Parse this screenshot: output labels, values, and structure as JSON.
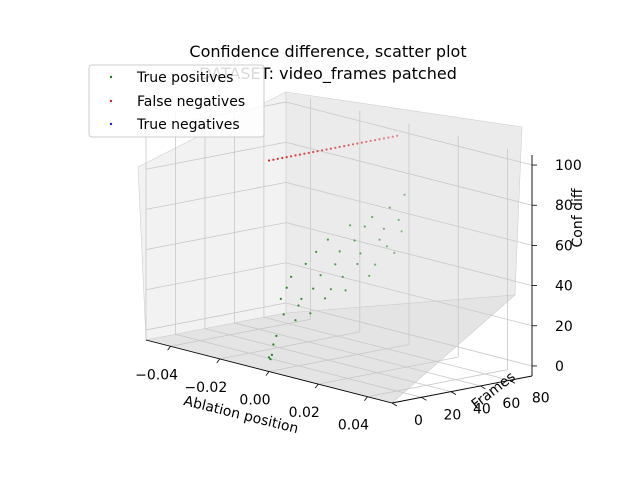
{
  "chart_data": {
    "type": "scatter",
    "projection": "3d",
    "title": "Confidence difference, scatter plot",
    "subtitle": "DATASET: video_frames patched",
    "xlabel": "Ablation position",
    "ylabel": "Frames",
    "zlabel": "Conf diff",
    "xlim": [
      -0.05,
      0.05
    ],
    "ylim": [
      0,
      95
    ],
    "zlim": [
      -5,
      105
    ],
    "xticks": [
      "−0.04",
      "−0.02",
      "0.00",
      "0.02",
      "0.04"
    ],
    "xtick_values": [
      -0.04,
      -0.02,
      0.0,
      0.02,
      0.04
    ],
    "yticks": [
      "0",
      "20",
      "40",
      "60",
      "80"
    ],
    "ytick_values": [
      0,
      20,
      40,
      60,
      80
    ],
    "zticks": [
      "0",
      "20",
      "40",
      "60",
      "80",
      "100"
    ],
    "ztick_values": [
      0,
      20,
      40,
      60,
      80,
      100
    ],
    "grid": true,
    "legend_position": "upper-left",
    "series": [
      {
        "name": "True positives",
        "color": "#1a7a1a",
        "x": [
          0,
          0,
          0,
          0,
          0,
          0,
          0,
          0,
          0,
          0,
          0,
          0,
          0,
          0,
          0,
          0,
          0,
          0,
          0,
          0,
          0,
          0,
          0,
          0,
          0,
          0,
          0,
          0,
          0,
          0,
          0,
          0,
          0,
          0,
          0,
          0,
          0,
          0,
          0,
          0
        ],
        "y": [
          0,
          1,
          2,
          3,
          5,
          8,
          10,
          12,
          15,
          18,
          20,
          22,
          25,
          28,
          30,
          32,
          35,
          38,
          40,
          42,
          45,
          48,
          50,
          52,
          55,
          58,
          60,
          62,
          65,
          68,
          70,
          72,
          75,
          78,
          80,
          82,
          85,
          88,
          90,
          92
        ],
        "z": [
          2,
          1,
          3,
          8,
          12,
          30,
          22,
          35,
          40,
          18,
          25,
          28,
          45,
          20,
          32,
          50,
          38,
          26,
          55,
          30,
          42,
          48,
          35,
          28,
          60,
          52,
          40,
          45,
          58,
          33,
          62,
          38,
          50,
          55,
          46,
          65,
          42,
          58,
          52,
          70
        ]
      },
      {
        "name": "False negatives",
        "color": "#d62728",
        "x": [
          0,
          0,
          0,
          0,
          0,
          0,
          0,
          0,
          0,
          0,
          0,
          0,
          0,
          0,
          0,
          0,
          0,
          0,
          0,
          0,
          0,
          0,
          0,
          0,
          0,
          0,
          0,
          0,
          0,
          0
        ],
        "y": [
          0,
          3,
          6,
          9,
          12,
          15,
          18,
          21,
          24,
          27,
          30,
          33,
          36,
          39,
          42,
          45,
          48,
          51,
          54,
          57,
          60,
          63,
          66,
          69,
          72,
          75,
          78,
          81,
          84,
          87
        ],
        "z": [
          100,
          100,
          100,
          100,
          100,
          100,
          100,
          100,
          100,
          100,
          100,
          100,
          100,
          100,
          100,
          100,
          100,
          100,
          100,
          100,
          100,
          100,
          100,
          100,
          100,
          100,
          100,
          100,
          100,
          100
        ]
      },
      {
        "name": "True negatives",
        "color": "#1f1fd6",
        "x": [],
        "y": [],
        "z": []
      }
    ]
  }
}
